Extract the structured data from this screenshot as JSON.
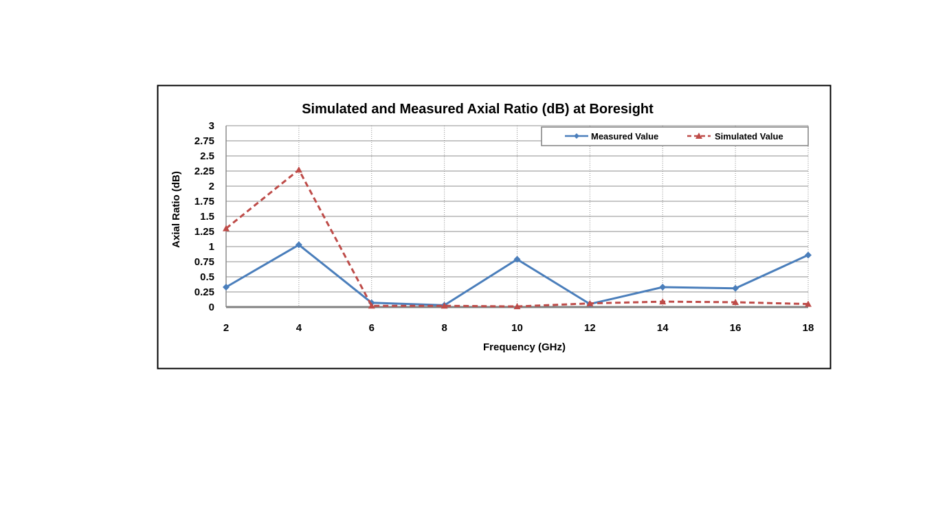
{
  "chart_data": {
    "type": "line",
    "title": "Simulated and Measured Axial Ratio (dB) at Boresight",
    "xlabel": "Frequency (GHz)",
    "ylabel": "Axial Ratio (dB)",
    "x": [
      2,
      4,
      6,
      8,
      10,
      12,
      14,
      16,
      18
    ],
    "x_tick_labels": [
      "2",
      "4",
      "6",
      "8",
      "10",
      "12",
      "14",
      "16",
      "18"
    ],
    "y_tick_labels": [
      "0",
      "0.25",
      "0.5",
      "0.75",
      "1",
      "1.25",
      "1.5",
      "1.75",
      "2",
      "2.25",
      "2.5",
      "2.75",
      "3"
    ],
    "xlim": [
      2,
      18
    ],
    "ylim": [
      0,
      3
    ],
    "grid": true,
    "legend_position": "top-right",
    "series": [
      {
        "name": "Measured Value",
        "values": [
          0.33,
          1.03,
          0.07,
          0.03,
          0.79,
          0.05,
          0.33,
          0.31,
          0.86
        ],
        "color": "#4a7ebb",
        "marker": "diamond",
        "dash": "solid"
      },
      {
        "name": "Simulated Value",
        "values": [
          1.3,
          2.27,
          0.02,
          0.02,
          0.01,
          0.06,
          0.09,
          0.08,
          0.05
        ],
        "color": "#be4b48",
        "marker": "triangle",
        "dash": "dashed"
      }
    ]
  }
}
